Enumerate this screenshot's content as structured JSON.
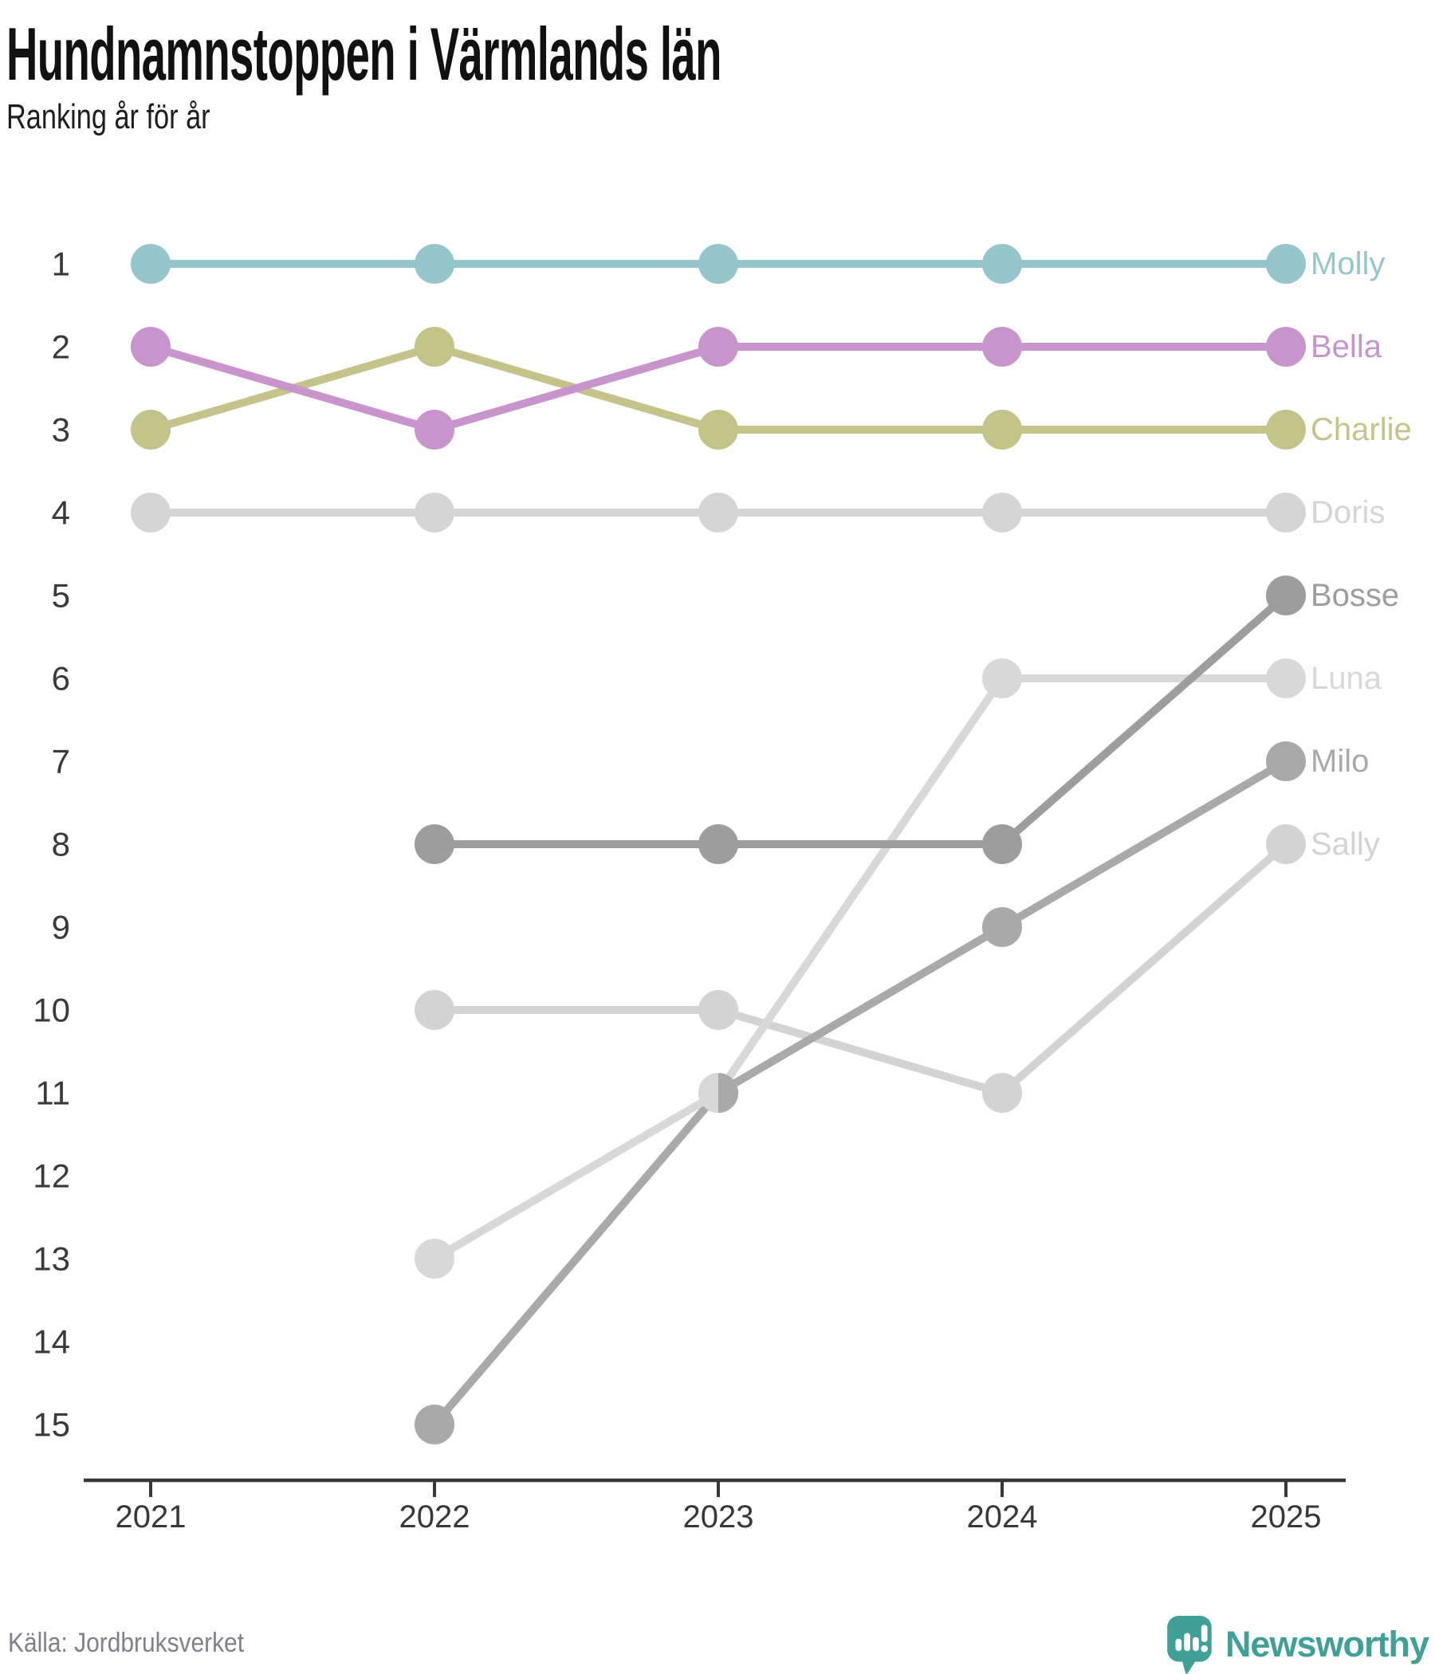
{
  "header": {
    "title": "Hundnamnstoppen i Värmlands län",
    "subtitle": "Ranking år för år"
  },
  "chart_data": {
    "type": "line",
    "subtype": "bump-ranking",
    "x": [
      "2021",
      "2022",
      "2023",
      "2024",
      "2025"
    ],
    "y_tick_labels": [
      "1",
      "2",
      "3",
      "4",
      "5",
      "6",
      "7",
      "8",
      "9",
      "10",
      "11",
      "12",
      "13",
      "14",
      "15"
    ],
    "ylim": [
      1,
      15
    ],
    "y_inverted": true,
    "grid": false,
    "legend_position": "right-end-labels",
    "series": [
      {
        "name": "Molly",
        "color": "#94c6cb",
        "values": [
          1,
          1,
          1,
          1,
          1
        ]
      },
      {
        "name": "Bella",
        "color": "#c794cb",
        "values": [
          2,
          3,
          2,
          2,
          2
        ]
      },
      {
        "name": "Charlie",
        "color": "#c5c28a",
        "values": [
          3,
          2,
          3,
          3,
          3
        ]
      },
      {
        "name": "Doris",
        "color": "#d5d5d5",
        "values": [
          4,
          4,
          4,
          4,
          4
        ]
      },
      {
        "name": "Bosse",
        "color": "#9d9d9d",
        "values": [
          null,
          8,
          8,
          8,
          5
        ]
      },
      {
        "name": "Luna",
        "color": "#d8d8d8",
        "values": [
          null,
          13,
          11,
          6,
          6
        ]
      },
      {
        "name": "Milo",
        "color": "#a9a9a9",
        "values": [
          null,
          15,
          11,
          9,
          7
        ]
      },
      {
        "name": "Sally",
        "color": "#d3d3d3",
        "values": [
          null,
          10,
          10,
          11,
          8
        ]
      }
    ],
    "axis_color": "#383838",
    "tick_label_color": "#3a3a3a"
  },
  "footer": {
    "source": "Källa: Jordbruksverket",
    "brand": "Newsworthy",
    "brand_color": "#3fa097"
  }
}
